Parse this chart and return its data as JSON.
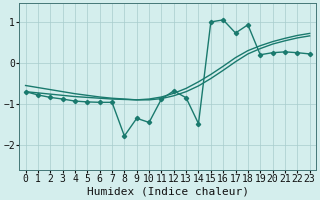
{
  "xlabel": "Humidex (Indice chaleur)",
  "bg_color": "#d4eeed",
  "line_color": "#1a7a6e",
  "grid_color": "#a8cccc",
  "xlim": [
    -0.5,
    23.5
  ],
  "ylim": [
    -2.6,
    1.45
  ],
  "xticks": [
    0,
    1,
    2,
    3,
    4,
    5,
    6,
    7,
    8,
    9,
    10,
    11,
    12,
    13,
    14,
    15,
    16,
    17,
    18,
    19,
    20,
    21,
    22,
    23
  ],
  "yticks": [
    -2,
    -1,
    0,
    1
  ],
  "smooth1_x": [
    0,
    1,
    2,
    3,
    4,
    5,
    6,
    7,
    8,
    9,
    10,
    11,
    12,
    13,
    14,
    15,
    16,
    17,
    18,
    19,
    20,
    21,
    22,
    23
  ],
  "smooth1_y": [
    -0.7,
    -0.73,
    -0.76,
    -0.79,
    -0.82,
    -0.84,
    -0.86,
    -0.88,
    -0.89,
    -0.9,
    -0.88,
    -0.83,
    -0.74,
    -0.62,
    -0.46,
    -0.28,
    -0.08,
    0.13,
    0.3,
    0.42,
    0.52,
    0.6,
    0.67,
    0.72
  ],
  "smooth2_x": [
    0,
    1,
    2,
    3,
    4,
    5,
    6,
    7,
    8,
    9,
    10,
    11,
    12,
    13,
    14,
    15,
    16,
    17,
    18,
    19,
    20,
    21,
    22,
    23
  ],
  "smooth2_y": [
    -0.55,
    -0.6,
    -0.65,
    -0.7,
    -0.75,
    -0.79,
    -0.83,
    -0.86,
    -0.88,
    -0.9,
    -0.9,
    -0.87,
    -0.8,
    -0.7,
    -0.56,
    -0.38,
    -0.18,
    0.03,
    0.22,
    0.35,
    0.46,
    0.54,
    0.61,
    0.66
  ],
  "jagged_x": [
    0,
    1,
    2,
    3,
    4,
    5,
    6,
    7,
    8,
    9,
    10,
    11,
    12,
    13,
    14,
    15,
    16,
    17,
    18,
    19,
    20,
    21,
    22,
    23
  ],
  "jagged_y": [
    -0.7,
    -0.78,
    -0.84,
    -0.88,
    -0.93,
    -0.95,
    -0.96,
    -0.96,
    -1.78,
    -1.35,
    -1.45,
    -0.88,
    -0.68,
    -0.85,
    -1.48,
    1.0,
    1.05,
    0.73,
    0.93,
    0.2,
    0.25,
    0.27,
    0.25,
    0.22
  ],
  "tick_fontsize": 7,
  "xlabel_fontsize": 8,
  "linewidth": 1.0,
  "marker": "D",
  "markersize": 2.2
}
